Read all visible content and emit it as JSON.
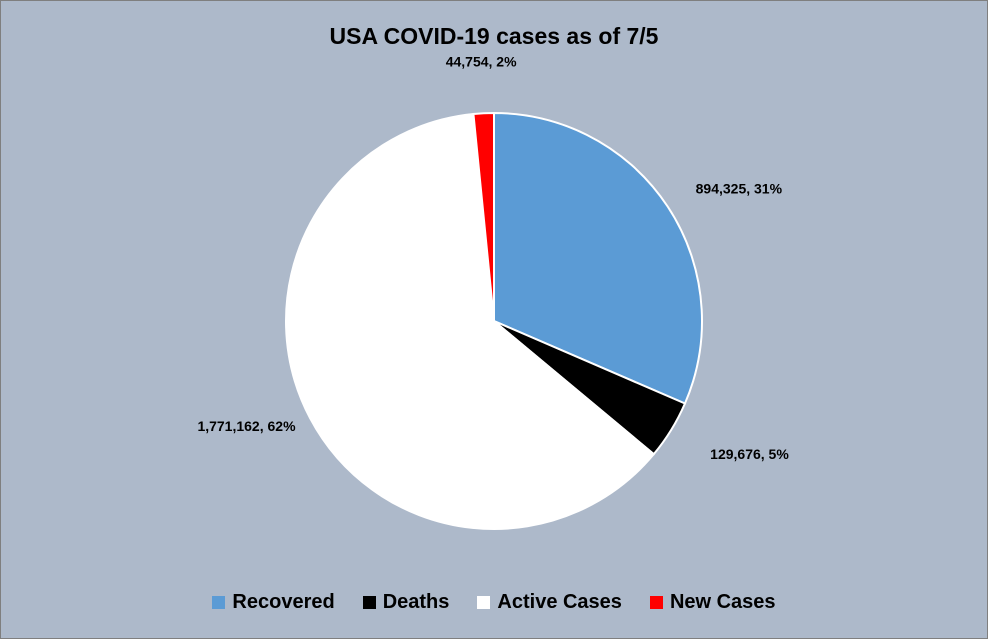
{
  "chart_data": {
    "type": "pie",
    "title": "USA COVID-19 cases as of 7/5",
    "categories": [
      "Recovered",
      "Deaths",
      "Active Cases",
      "New Cases"
    ],
    "values": [
      894325,
      129676,
      1771162,
      44754
    ],
    "percent_labels": [
      "31%",
      "5%",
      "62%",
      "2%"
    ],
    "data_labels": [
      "894,325, 31%",
      "129,676, 5%",
      "1,771,162, 62%",
      "44,754, 2%"
    ],
    "colors": [
      "#5b9bd5",
      "#000000",
      "#ffffff",
      "#ff0000"
    ],
    "legend_position": "bottom",
    "start_angle_deg": 90
  }
}
